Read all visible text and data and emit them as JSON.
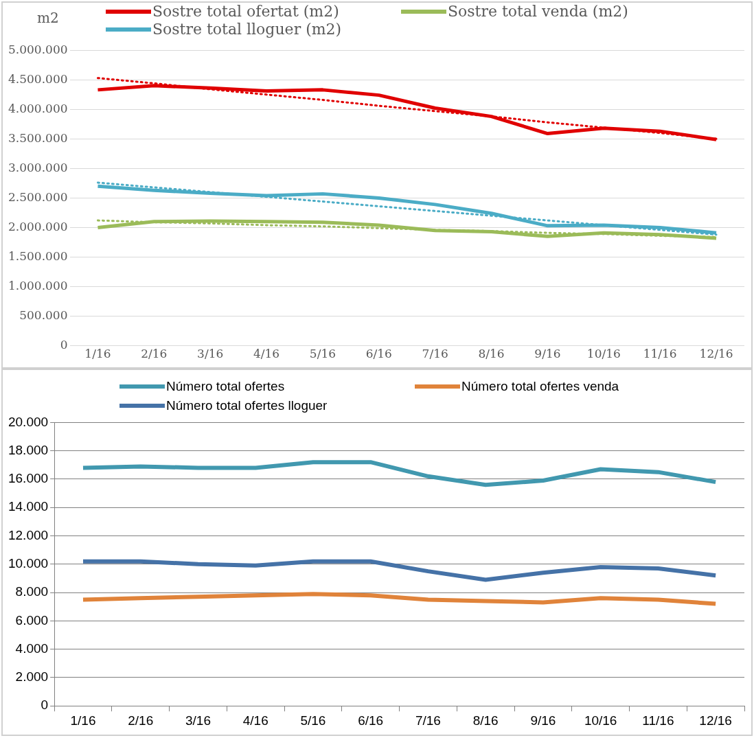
{
  "chart_data": [
    {
      "type": "line",
      "ylabel": "m2",
      "categories": [
        "1/16",
        "2/16",
        "3/16",
        "4/16",
        "5/16",
        "6/16",
        "7/16",
        "8/16",
        "9/16",
        "10/16",
        "11/16",
        "12/16"
      ],
      "series": [
        {
          "name": "Sostre total ofertat (m2)",
          "color": "#e00000",
          "values": [
            4330000,
            4400000,
            4360000,
            4310000,
            4330000,
            4240000,
            4020000,
            3880000,
            3590000,
            3680000,
            3630000,
            3490000
          ]
        },
        {
          "name": "Sostre total venda (m2)",
          "color": "#9bbb59",
          "values": [
            2000000,
            2100000,
            2110000,
            2100000,
            2090000,
            2040000,
            1950000,
            1930000,
            1850000,
            1910000,
            1880000,
            1820000
          ]
        },
        {
          "name": "Sostre total lloguer (m2)",
          "color": "#4bacc6",
          "values": [
            2700000,
            2630000,
            2580000,
            2540000,
            2570000,
            2500000,
            2390000,
            2240000,
            2030000,
            2040000,
            2000000,
            1910000
          ]
        },
        {
          "type": "line",
          "line_style": "dotted",
          "color": "#e00000",
          "values": [
            4530000,
            4440000,
            4340000,
            4250000,
            4160000,
            4060000,
            3970000,
            3880000,
            3780000,
            3690000,
            3600000,
            3500000
          ]
        },
        {
          "type": "line",
          "line_style": "dotted",
          "color": "#9bbb59",
          "values": [
            2120000,
            2090000,
            2070000,
            2040000,
            2020000,
            1990000,
            1960000,
            1940000,
            1910000,
            1890000,
            1860000,
            1840000
          ]
        },
        {
          "type": "line",
          "line_style": "dotted",
          "color": "#4bacc6",
          "values": [
            2760000,
            2680000,
            2600000,
            2520000,
            2440000,
            2360000,
            2280000,
            2200000,
            2120000,
            2040000,
            1960000,
            1880000
          ]
        }
      ],
      "ylim": [
        0,
        5000000
      ],
      "yticks": [
        0,
        {
          "value": 500000,
          "label": "500.000"
        },
        {
          "value": 1000000,
          "label": "1.000.000"
        },
        {
          "value": 1500000,
          "label": "1.500.000"
        },
        {
          "value": 2000000,
          "label": "2.000.000"
        },
        {
          "value": 2500000,
          "label": "2.500.000"
        },
        {
          "value": 3000000,
          "label": "3.000.000"
        },
        {
          "value": 3500000,
          "label": "3.500.000"
        },
        {
          "value": 4000000,
          "label": "4.000.000"
        },
        {
          "value": 4500000,
          "label": "4.500.000"
        },
        {
          "value": 5000000,
          "label": "5.000.000"
        }
      ],
      "grid": "y",
      "legend": "top",
      "marker": "none",
      "line_style": "solid"
    },
    {
      "type": "line",
      "categories": [
        "1/16",
        "2/16",
        "3/16",
        "4/16",
        "5/16",
        "6/16",
        "7/16",
        "8/16",
        "9/16",
        "10/16",
        "11/16",
        "12/16"
      ],
      "series": [
        {
          "name": "Número total ofertes",
          "color": "#4198af",
          "values": [
            16800,
            16900,
            16800,
            16800,
            17200,
            17200,
            16200,
            15600,
            15900,
            16700,
            16500,
            15800
          ]
        },
        {
          "name": "Número total ofertes venda",
          "color": "#e0833a",
          "values": [
            7500,
            7600,
            7700,
            7800,
            7900,
            7800,
            7500,
            7400,
            7300,
            7600,
            7500,
            7200
          ]
        },
        {
          "name": "Número total ofertes lloguer",
          "color": "#4572a7",
          "values": [
            10200,
            10200,
            10000,
            9900,
            10200,
            10200,
            9500,
            8900,
            9400,
            9800,
            9700,
            9200
          ]
        }
      ],
      "ylim": [
        0,
        20000
      ],
      "yticks": [
        0,
        {
          "value": 2000,
          "label": "2.000"
        },
        {
          "value": 4000,
          "label": "4.000"
        },
        {
          "value": 6000,
          "label": "6.000"
        },
        {
          "value": 8000,
          "label": "8.000"
        },
        {
          "value": 10000,
          "label": "10.000"
        },
        {
          "value": 12000,
          "label": "12.000"
        },
        {
          "value": 14000,
          "label": "14.000"
        },
        {
          "value": 16000,
          "label": "16.000"
        },
        {
          "value": 18000,
          "label": "18.000"
        },
        {
          "value": 20000,
          "label": "20.000"
        }
      ],
      "grid": "y",
      "legend": "top",
      "marker": "none",
      "line_style": "solid"
    }
  ]
}
